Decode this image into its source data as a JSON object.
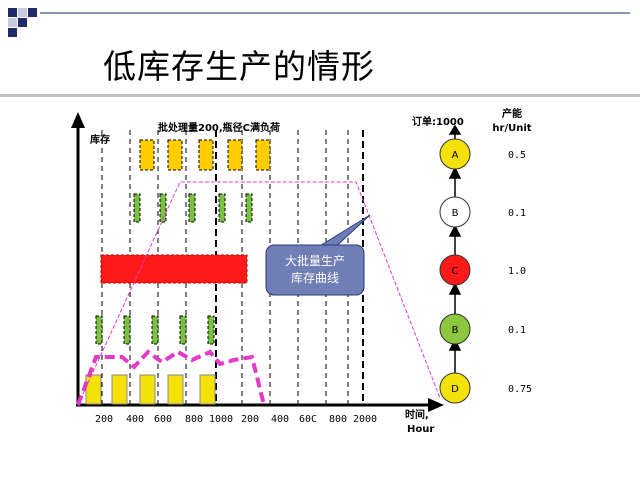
{
  "slide": {
    "title": "低库存生产的情形"
  },
  "chart": {
    "y_label": "库存",
    "header": "批处理量200,瓶径C满负荷",
    "x_unit_line1": "时间,",
    "x_unit_line2": "Hour",
    "tick_labels": [
      "200",
      "400",
      "600",
      "800",
      "1000",
      "200",
      "400",
      "60C",
      "800",
      "2000"
    ],
    "callout_line1": "大批量生产",
    "callout_line2": "库存曲线"
  },
  "process": {
    "order_label": "订单:1000",
    "capacity_header_line1": "产能",
    "capacity_header_line2": "hr/Unit",
    "nodes": [
      {
        "letter": "A",
        "capacity": "0.5",
        "color": "#f5e10a"
      },
      {
        "letter": "B",
        "capacity": "0.1",
        "color": "#ffffff"
      },
      {
        "letter": "C",
        "capacity": "1.0",
        "color": "#ff1a1a"
      },
      {
        "letter": "B",
        "capacity": "0.1",
        "color": "#8dc63f"
      },
      {
        "letter": "D",
        "capacity": "0.75",
        "color": "#f5e10a"
      }
    ]
  },
  "colors": {
    "accent_square": "#1f2a6b",
    "light_square": "#c8cbe0",
    "callout_fill": "#6f7fb5",
    "magenta": "#e639c8",
    "red_bar": "#ff1a1a",
    "yellow_block": "#f5e10a",
    "orange_block": "#ffcc00",
    "green_block": "#7ac143"
  }
}
